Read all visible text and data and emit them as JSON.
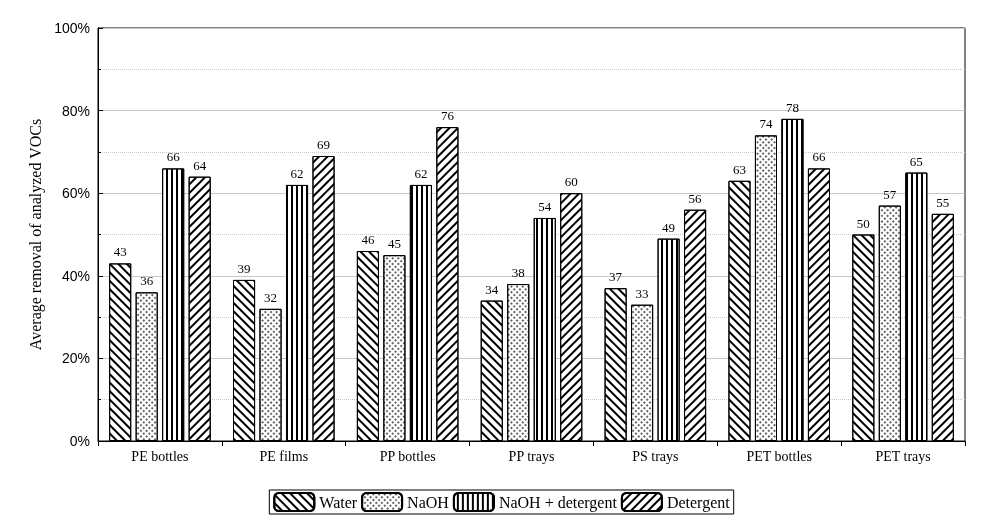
{
  "chart_data": {
    "type": "bar",
    "ylabel": "Average removal of analyzed VOCs",
    "categories": [
      "PE bottles",
      "PE films",
      "PP bottles",
      "PP trays",
      "PS trays",
      "PET bottles",
      "PET trays"
    ],
    "series": [
      {
        "name": "Water",
        "color": "#ffffff",
        "values": [
          43,
          39,
          46,
          34,
          37,
          63,
          50
        ]
      },
      {
        "name": "NaOH",
        "color": "#ffffff",
        "values": [
          36,
          32,
          45,
          38,
          33,
          74,
          57
        ]
      },
      {
        "name": "NaOH + detergent",
        "color": "#ffffff",
        "values": [
          66,
          62,
          62,
          54,
          49,
          78,
          65
        ]
      },
      {
        "name": "Detergent",
        "color": "#ffffff",
        "values": [
          64,
          69,
          76,
          60,
          56,
          66,
          55
        ]
      }
    ],
    "ylim": [
      0,
      100
    ],
    "yticks": [
      {
        "value": 0,
        "label": "0%"
      },
      {
        "value": 20,
        "label": "20%"
      },
      {
        "value": 40,
        "label": "40%"
      },
      {
        "value": 60,
        "label": "60%"
      },
      {
        "value": 80,
        "label": "80%"
      },
      {
        "value": 100,
        "label": "100%"
      }
    ],
    "grid": "y",
    "legend": "bottom",
    "data_labels": true
  }
}
